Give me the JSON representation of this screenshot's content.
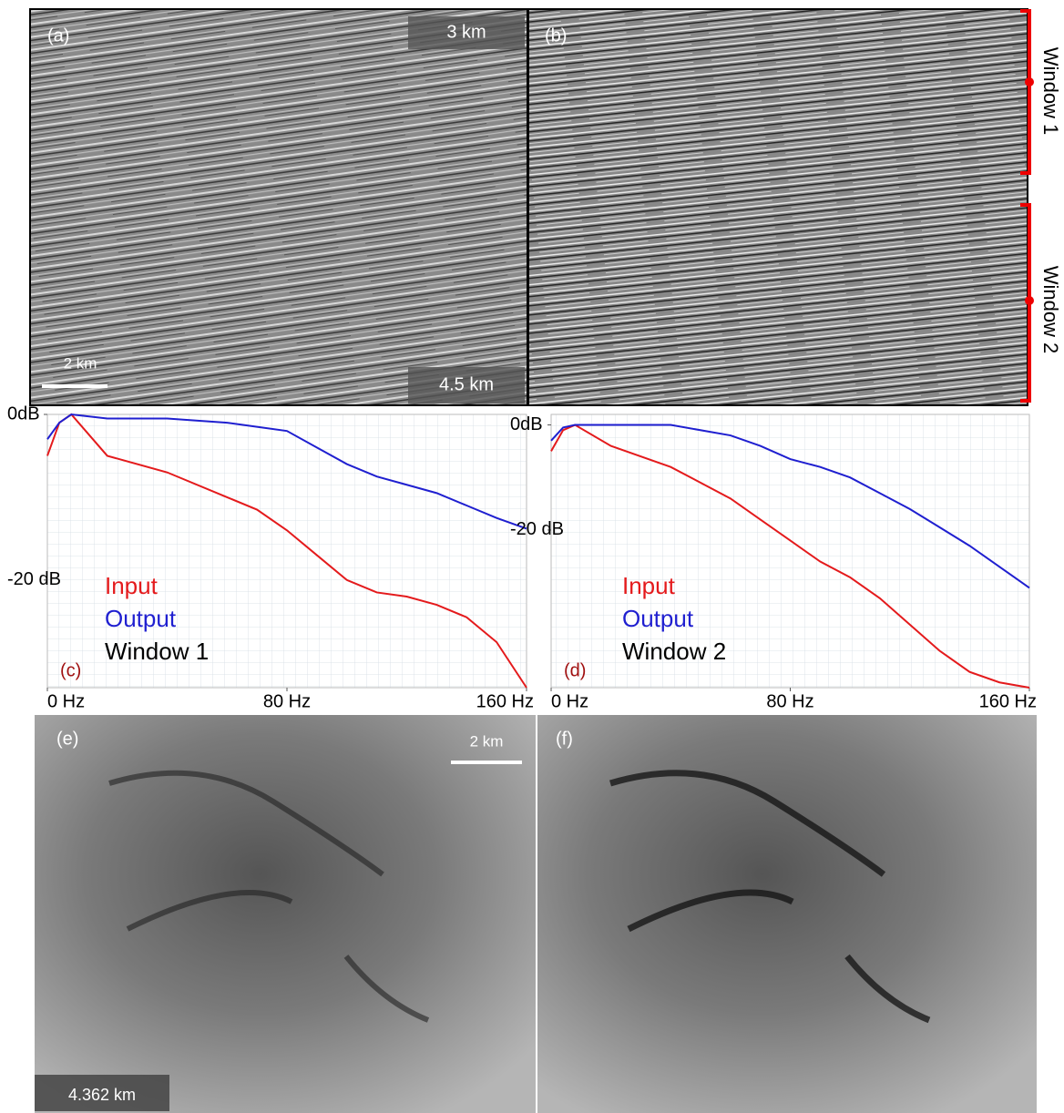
{
  "seismic_sections": [
    {
      "label": "(a)",
      "top_annotation": "3 km",
      "scale_bar": "2 km",
      "bottom_annotation": "4.5 km"
    },
    {
      "label": "(b)"
    }
  ],
  "windows": [
    "Window 1",
    "Window 2"
  ],
  "chart_data": [
    {
      "type": "line",
      "panel_label": "(c)",
      "annotation": "Window 1",
      "x": [
        0,
        4,
        8,
        20,
        40,
        60,
        70,
        80,
        90,
        100,
        110,
        120,
        130,
        140,
        150,
        160
      ],
      "series": [
        {
          "name": "Input",
          "color": "#e41a1c",
          "values": [
            -5,
            -1,
            0,
            -5,
            -7,
            -10,
            -11.5,
            -14,
            -17,
            -20,
            -21.5,
            -22,
            -23,
            -24.5,
            -27.5,
            -33
          ]
        },
        {
          "name": "Output",
          "color": "#1f1fd0",
          "values": [
            -3,
            -1,
            0,
            -0.5,
            -0.5,
            -1,
            -1.5,
            -2,
            -4,
            -6,
            -7.5,
            -8.5,
            -9.5,
            -11,
            -12.5,
            -13.8
          ]
        }
      ],
      "xlim": [
        0,
        160
      ],
      "ylim": [
        -33,
        0
      ],
      "xticks": [
        {
          "value": 0,
          "label": "0 Hz"
        },
        {
          "value": 80,
          "label": "80 Hz"
        },
        {
          "value": 160,
          "label": "160 Hz"
        }
      ],
      "yticks": [
        {
          "value": 0,
          "label": "0dB"
        },
        {
          "value": -20,
          "label": "-20 dB"
        }
      ],
      "grid": true
    },
    {
      "type": "line",
      "panel_label": "(d)",
      "annotation": "Window 2",
      "x": [
        0,
        4,
        8,
        20,
        40,
        60,
        70,
        80,
        90,
        100,
        110,
        120,
        130,
        140,
        150,
        160
      ],
      "series": [
        {
          "name": "Input",
          "color": "#e41a1c",
          "values": [
            -5,
            -1,
            0,
            -4,
            -8,
            -14,
            -18,
            -22,
            -26,
            -29,
            -33,
            -38,
            -43,
            -47,
            -49,
            -50
          ]
        },
        {
          "name": "Output",
          "color": "#1f1fd0",
          "values": [
            -3,
            -0.5,
            0,
            0,
            0,
            -2,
            -4,
            -6.5,
            -8,
            -10,
            -13,
            -16,
            -19.5,
            -23,
            -27,
            -31
          ]
        }
      ],
      "xlim": [
        0,
        160
      ],
      "ylim": [
        -50,
        2
      ],
      "xticks": [
        {
          "value": 0,
          "label": "0 Hz"
        },
        {
          "value": 80,
          "label": "80 Hz"
        },
        {
          "value": 160,
          "label": "160 Hz"
        }
      ],
      "yticks": [
        {
          "value": 0,
          "label": "0dB"
        },
        {
          "value": -20,
          "label": "-20 dB"
        }
      ],
      "grid": true
    }
  ],
  "time_slices": [
    {
      "label": "(e)",
      "scale_bar": "2 km",
      "annotation": "4.362 km"
    },
    {
      "label": "(f)"
    }
  ]
}
